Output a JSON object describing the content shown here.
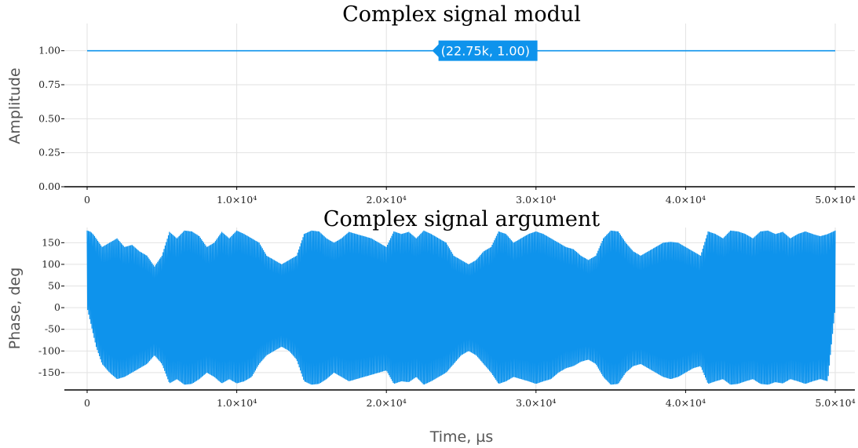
{
  "chart_data": [
    {
      "type": "line",
      "title": "Complex signal modul",
      "xlabel": "",
      "ylabel": "Amplitude",
      "xlim": [
        0,
        50000
      ],
      "ylim": [
        0,
        1.2
      ],
      "x_ticks": [
        0,
        10000,
        20000,
        30000,
        40000,
        50000
      ],
      "x_tick_labels": [
        "0",
        "1.0×10⁴",
        "2.0×10⁴",
        "3.0×10⁴",
        "4.0×10⁴",
        "5.0×10⁴"
      ],
      "y_ticks": [
        0,
        0.25,
        0.5,
        0.75,
        1.0
      ],
      "y_tick_labels": [
        "0.00",
        "0.25",
        "0.50",
        "0.75",
        "1.00"
      ],
      "grid": true,
      "series": [
        {
          "x": [
            0,
            50000
          ],
          "y": [
            1.0,
            1.0
          ],
          "color": "#0e93ec"
        }
      ],
      "hover_label": {
        "x": 22750,
        "y": 1.0,
        "text": "(22.75k, 1.00)"
      }
    },
    {
      "type": "line",
      "title": "Complex signal argument",
      "xlabel": "Time, µs",
      "ylabel": "Phase, deg",
      "xlim": [
        0,
        50000
      ],
      "ylim": [
        -190,
        185
      ],
      "x_ticks": [
        0,
        10000,
        20000,
        30000,
        40000,
        50000
      ],
      "x_tick_labels": [
        "0",
        "1.0×10⁴",
        "2.0×10⁴",
        "3.0×10⁴",
        "4.0×10⁴",
        "5.0×10⁴"
      ],
      "y_ticks": [
        150,
        100,
        50,
        0,
        -50,
        -100,
        -150
      ],
      "y_tick_labels": [
        "150",
        "100",
        "50",
        "0",
        "-50",
        "-100",
        "-150"
      ],
      "grid": true,
      "series": [
        {
          "color": "#0e93ec",
          "x": [
            0,
            200,
            400,
            600,
            800,
            1000,
            1500,
            2000,
            2500,
            3000,
            3500,
            4000,
            4500,
            5000,
            5500,
            6000,
            6500,
            7000,
            7500,
            8000,
            8500,
            9000,
            9500,
            10000,
            10500,
            11000,
            11500,
            12000,
            12500,
            13000,
            13500,
            14000,
            14500,
            15000,
            15500,
            16000,
            16500,
            17000,
            17500,
            18000,
            18500,
            19000,
            19500,
            20000,
            20500,
            21000,
            21500,
            22000,
            22500,
            23000,
            23500,
            24000,
            24500,
            25000,
            25500,
            26000,
            26500,
            27000,
            27500,
            28000,
            28500,
            29000,
            29500,
            30000,
            30500,
            31000,
            31500,
            32000,
            32500,
            33000,
            33500,
            34000,
            34500,
            35000,
            35500,
            36000,
            36500,
            37000,
            37500,
            38000,
            38500,
            39000,
            39500,
            40000,
            40500,
            41000,
            41500,
            42000,
            42500,
            43000,
            43500,
            44000,
            44500,
            45000,
            45500,
            46000,
            46500,
            47000,
            47500,
            48000,
            48500,
            49000,
            49500,
            50000
          ],
          "y_max": [
            178,
            176,
            170,
            160,
            150,
            140,
            150,
            160,
            140,
            145,
            130,
            120,
            95,
            120,
            175,
            160,
            178,
            176,
            165,
            140,
            150,
            175,
            160,
            178,
            170,
            160,
            150,
            120,
            110,
            100,
            110,
            120,
            170,
            178,
            176,
            160,
            150,
            160,
            175,
            170,
            165,
            160,
            150,
            140,
            176,
            170,
            175,
            160,
            178,
            170,
            160,
            150,
            120,
            110,
            100,
            110,
            130,
            140,
            176,
            170,
            150,
            160,
            170,
            176,
            170,
            160,
            150,
            140,
            135,
            120,
            110,
            120,
            160,
            178,
            176,
            150,
            130,
            120,
            130,
            140,
            150,
            152,
            150,
            140,
            130,
            120,
            176,
            170,
            160,
            178,
            176,
            170,
            160,
            176,
            178,
            170,
            175,
            160,
            170,
            176,
            170,
            165,
            170,
            178
          ],
          "y_min": [
            0,
            -30,
            -60,
            -90,
            -110,
            -130,
            -150,
            -165,
            -160,
            -150,
            -140,
            -130,
            -110,
            -130,
            -175,
            -165,
            -178,
            -176,
            -165,
            -150,
            -160,
            -175,
            -165,
            -175,
            -170,
            -160,
            -130,
            -110,
            -100,
            -90,
            -100,
            -120,
            -170,
            -178,
            -176,
            -165,
            -150,
            -160,
            -170,
            -165,
            -160,
            -155,
            -150,
            -145,
            -176,
            -170,
            -172,
            -160,
            -178,
            -170,
            -160,
            -150,
            -130,
            -110,
            -100,
            -110,
            -130,
            -150,
            -176,
            -170,
            -160,
            -165,
            -170,
            -176,
            -170,
            -165,
            -150,
            -140,
            -135,
            -125,
            -120,
            -130,
            -160,
            -178,
            -176,
            -150,
            -135,
            -130,
            -140,
            -150,
            -160,
            -165,
            -160,
            -150,
            -140,
            -135,
            -176,
            -170,
            -165,
            -178,
            -176,
            -170,
            -165,
            -176,
            -178,
            -172,
            -175,
            -165,
            -170,
            -176,
            -170,
            -165,
            -170,
            0
          ]
        }
      ]
    }
  ]
}
